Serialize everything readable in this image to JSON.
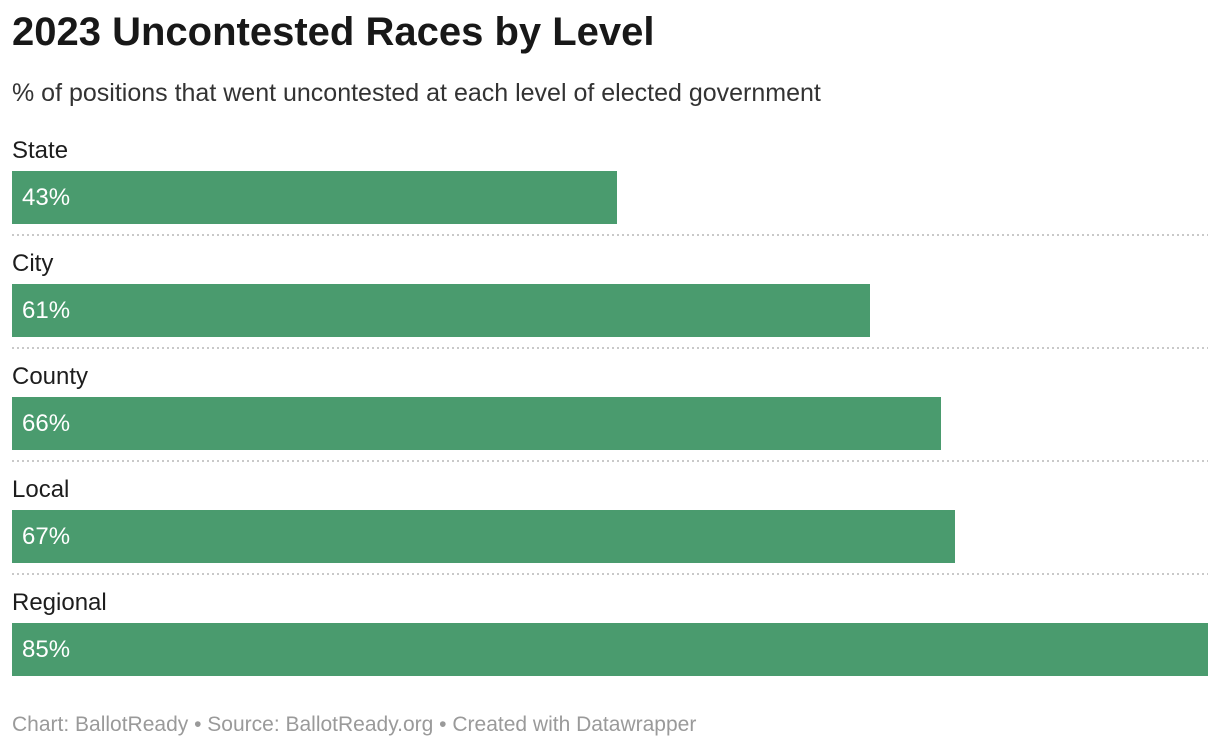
{
  "header": {
    "title": "2023 Uncontested Races by Level",
    "subtitle": "% of positions that went uncontested at each level of elected government"
  },
  "footer": {
    "text": "Chart: BallotReady • Source: BallotReady.org • Created with Datawrapper"
  },
  "chart_data": {
    "type": "bar",
    "orientation": "horizontal",
    "title": "2023 Uncontested Races by Level",
    "subtitle": "% of positions that went uncontested at each level of elected government",
    "categories": [
      "State",
      "City",
      "County",
      "Local",
      "Regional"
    ],
    "values": [
      43,
      61,
      66,
      67,
      85
    ],
    "value_labels": [
      "43%",
      "61%",
      "66%",
      "67%",
      "85%"
    ],
    "xlabel": "",
    "ylabel": "",
    "xlim": [
      0,
      85
    ],
    "grid": false,
    "legend": false,
    "bar_color": "#4a9b6e",
    "value_label_color": "#ffffff"
  },
  "colors": {
    "background": "#ffffff",
    "title": "#181818",
    "subtitle": "#333333",
    "category_label": "#1d1d1d",
    "bar": "#4a9b6e",
    "bar_value_text": "#ffffff",
    "separator": "#c9c9c9",
    "footer": "#9a9a9a"
  }
}
